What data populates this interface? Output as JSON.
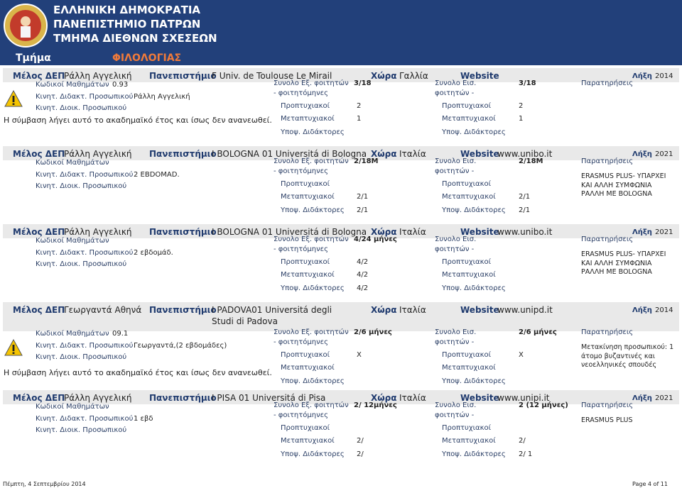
{
  "header": {
    "title_lines": [
      "ΕΛΛΗΝΙΚΗ ΔΗΜΟΚΡΑΤΙΑ",
      "ΠΑΝΕΠΙΣΤΗΜΙΟ ΠΑΤΡΩΝ",
      "ΤΜΗΜΑ ΔΙΕΘΝΩΝ ΣΧΕΣΕΩΝ"
    ],
    "department_label": "Τμήμα",
    "department": "ΦΙΛΟΛΟΓΙΑΣ"
  },
  "labels": {
    "member": "Μέλος ΔΕΠ",
    "university": "Πανεπιστήμιο",
    "country": "Χώρα",
    "website": "Website",
    "expiry": "Λήξη",
    "course_codes": "Κωδικοί Μαθημάτων",
    "teaching_staff": "Κινητ. Διδακτ. Προσωπικού",
    "admin_staff": "Κινητ. Διοικ. Προσωπικού",
    "outgoing_1": "Συνολο Εξ. φοιτητών",
    "outgoing_2": "- φοιτητόμηνες",
    "incoming_1": "Συνολο Εισ.",
    "incoming_2": "φοιτητών -",
    "undergrad": "Προπτυχιακοί",
    "postgrad": "Μεταπτυχιακοί",
    "phd": "Υποψ. Διδάκτορες",
    "remarks": "Παρατηρήσεις"
  },
  "records": [
    {
      "member": "Ράλλη Αγγελική",
      "university": "F Univ. de Toulouse Le Mirail",
      "country": "Γαλλία",
      "expiry": "2014",
      "course_codes": "0.93",
      "teaching_staff": "Ράλλη Αγγελική",
      "outgoing": {
        "total": "3/18",
        "undergrad": "2",
        "postgrad": "1"
      },
      "incoming": {
        "total": "3/18",
        "undergrad": "2",
        "postgrad": "1"
      },
      "note": "Η σύμβαση λήγει αυτό το ακαδημαϊκό έτος και ίσως δεν ανανεωθεί."
    },
    {
      "member": "Ράλλη Αγγελική",
      "university": "I BOLOGNA 01 Universitá di Bologna",
      "country": "Ιταλία",
      "website": "www.unibo.it",
      "expiry": "2021",
      "teaching_staff": "2 EBDOMAD.",
      "outgoing": {
        "total": "2/18M",
        "postgrad": "2/1",
        "phd": "2/1"
      },
      "incoming": {
        "total": "2/18M",
        "postgrad": "2/1",
        "phd": "2/1"
      },
      "remarks": [
        "ERASMUS PLUS- ΥΠΑΡΧΕΙ",
        "ΚΑΙ ΑΛΛΗ ΣΥΜΦΩΝΙΑ",
        "ΡΑΛΛΗ ΜΕ BOLOGNA"
      ]
    },
    {
      "member": "Ράλλη Αγγελική",
      "university": "I BOLOGNA 01 Universitá di Bologna",
      "country": "Ιταλία",
      "website": "www.unibo.it",
      "expiry": "2021",
      "teaching_staff": "2 εβδομάδ.",
      "outgoing": {
        "total": "4/24 μήνες",
        "undergrad": "4/2",
        "postgrad": "4/2",
        "phd": "4/2"
      },
      "incoming": {},
      "remarks": [
        "ERASMUS PLUS- ΥΠΑΡΧΕΙ",
        "ΚΑΙ ΑΛΛΗ ΣΥΜΦΩΝΙΑ",
        "ΡΑΛΛΗ ΜΕ BOLOGNA"
      ]
    },
    {
      "member": "Γεωργαντά Αθηνά",
      "university": "I PADOVA01 Universitá degli Studi di Padova",
      "country": "Ιταλία",
      "website": "www.unipd.it",
      "expiry": "2014",
      "course_codes": "09.1",
      "teaching_staff": "Γεωργαντά,(2 εβδομάδες)",
      "outgoing": {
        "total": "2/6 μήνες",
        "undergrad": "X"
      },
      "incoming": {
        "total": "2/6 μήνες",
        "undergrad": "X"
      },
      "remarks": [
        "Μετακίνηση προσωπικού: 1",
        "άτομο βυζαντινές και",
        "νεοελληνικές σπουδές"
      ],
      "note": "Η σύμβαση λήγει αυτό το ακαδημαϊκό έτος και ίσως δεν ανανεωθεί."
    },
    {
      "member": "Ράλλη Αγγελική",
      "university": "I PISA 01 Universitá di Pisa",
      "country": "Ιταλία",
      "website": "www.unipi.it",
      "expiry": "2021",
      "teaching_staff": "1 εβδ",
      "outgoing": {
        "total": "2/ 12μήνες",
        "postgrad": "2/",
        "phd": "2/"
      },
      "incoming": {
        "total": "2 (12 μήνες)",
        "postgrad": "2/",
        "phd": "2/ 1"
      },
      "remarks": [
        "ERASMUS PLUS"
      ]
    }
  ],
  "footer": {
    "date": "Πέμπτη, 4 Σεπτεμβρίου 2014",
    "page": "Page 4 of 11"
  }
}
